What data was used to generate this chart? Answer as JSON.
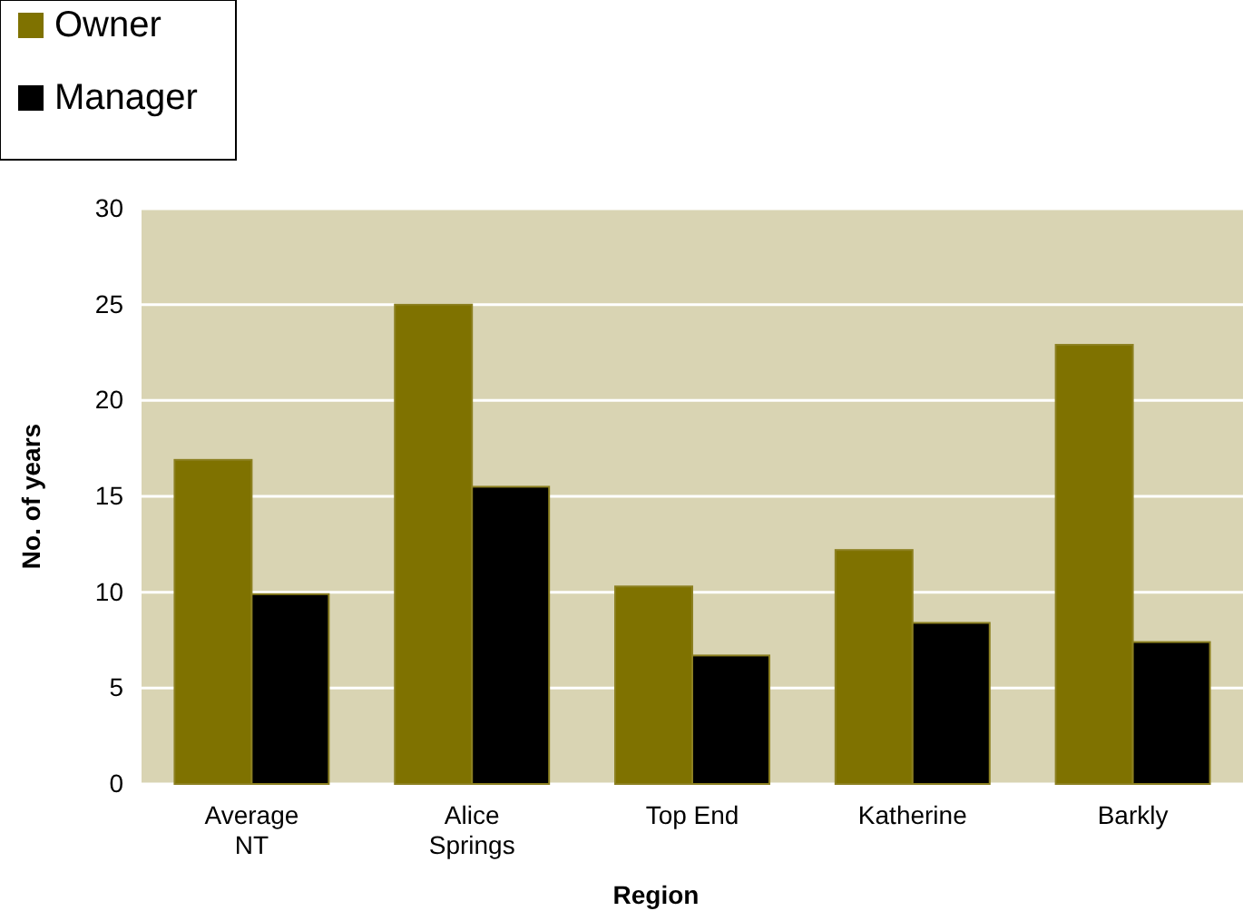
{
  "chart_data": {
    "type": "bar",
    "xlabel": "Region",
    "ylabel": "No. of years",
    "categories": [
      "Average NT",
      "Alice Springs",
      "Top End",
      "Katherine",
      "Barkly"
    ],
    "series": [
      {
        "name": "Owner",
        "color": "#7f7200",
        "values": [
          16.9,
          25,
          10.3,
          12.2,
          22.9
        ]
      },
      {
        "name": "Manager",
        "color": "#000000",
        "values": [
          9.9,
          15.5,
          6.7,
          8.4,
          7.4
        ]
      }
    ],
    "ylim": [
      0,
      30
    ],
    "yticks": [
      0,
      5,
      10,
      15,
      20,
      25,
      30
    ],
    "grid": "y",
    "legend": "top left"
  }
}
